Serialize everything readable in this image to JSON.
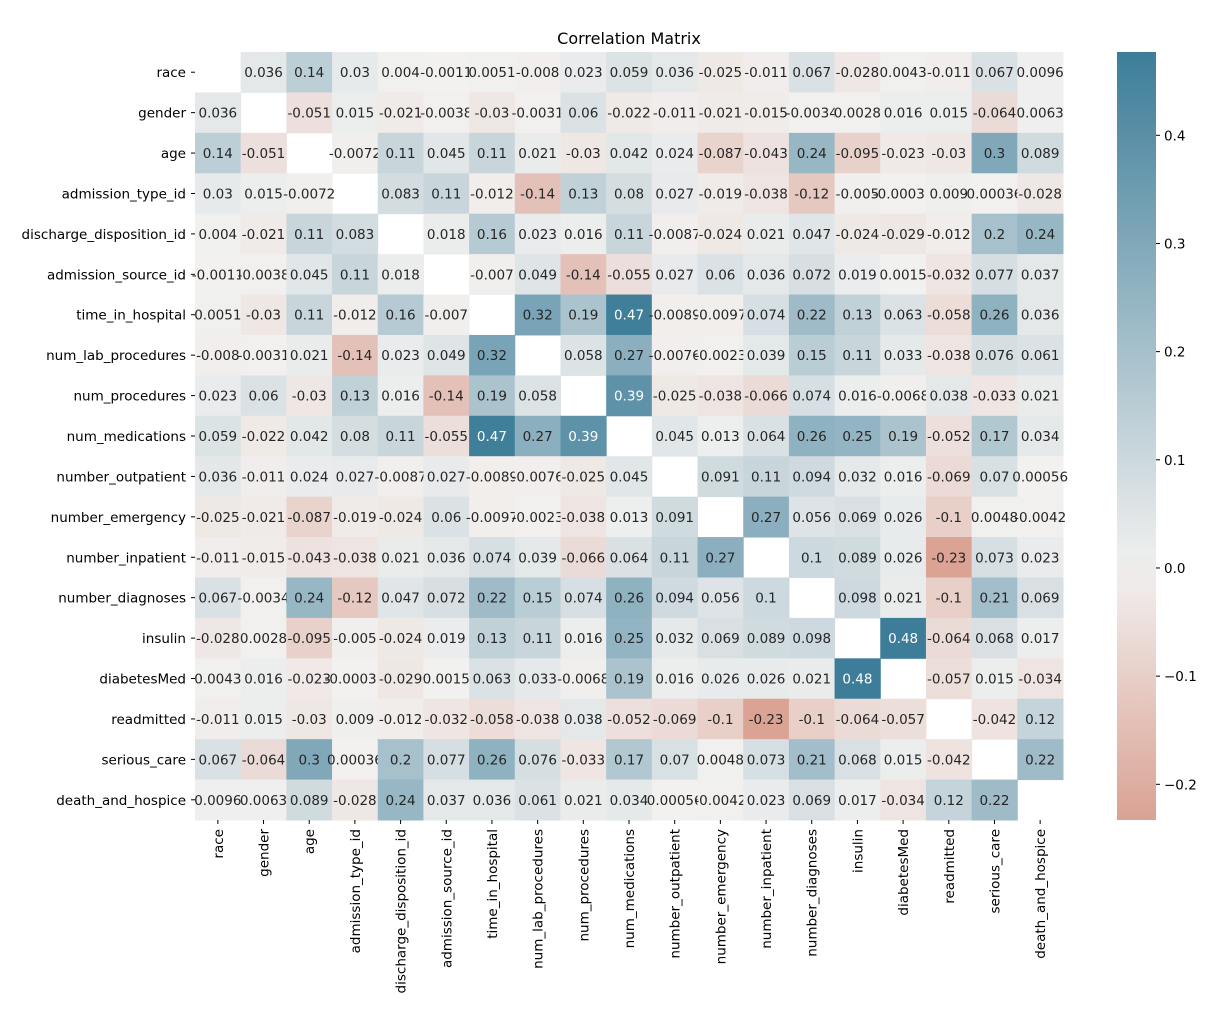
{
  "chart_data": {
    "type": "heatmap",
    "title": "Correlation Matrix",
    "labels": [
      "race",
      "gender",
      "age",
      "admission_type_id",
      "discharge_disposition_id",
      "admission_source_id",
      "time_in_hospital",
      "num_lab_procedures",
      "num_procedures",
      "num_medications",
      "number_outpatient",
      "number_emergency",
      "number_inpatient",
      "number_diagnoses",
      "insulin",
      "diabetesMed",
      "readmitted",
      "serious_care",
      "death_and_hospice"
    ],
    "matrix": [
      [
        null,
        0.036,
        0.14,
        0.03,
        0.004,
        -0.0011,
        0.0051,
        -0.008,
        0.023,
        0.059,
        0.036,
        -0.025,
        -0.011,
        0.067,
        -0.028,
        0.0043,
        -0.011,
        0.067,
        0.0096
      ],
      [
        0.036,
        null,
        -0.051,
        0.015,
        -0.021,
        -0.0038,
        -0.03,
        -0.0031,
        0.06,
        -0.022,
        -0.011,
        -0.021,
        -0.015,
        -0.0034,
        0.0028,
        0.016,
        0.015,
        -0.064,
        0.0063
      ],
      [
        0.14,
        -0.051,
        null,
        -0.0072,
        0.11,
        0.045,
        0.11,
        0.021,
        -0.03,
        0.042,
        0.024,
        -0.087,
        -0.043,
        0.24,
        -0.095,
        -0.023,
        -0.03,
        0.3,
        0.089
      ],
      [
        0.03,
        0.015,
        -0.0072,
        null,
        0.083,
        0.11,
        -0.012,
        -0.14,
        0.13,
        0.08,
        0.027,
        -0.019,
        -0.038,
        -0.12,
        -0.005,
        -0.00031,
        0.009,
        0.00036,
        -0.028
      ],
      [
        0.004,
        -0.021,
        0.11,
        0.083,
        null,
        0.018,
        0.16,
        0.023,
        0.016,
        0.11,
        -0.0087,
        -0.024,
        0.021,
        0.047,
        -0.024,
        -0.029,
        -0.012,
        0.2,
        0.24
      ],
      [
        -0.0011,
        -0.0038,
        0.045,
        0.11,
        0.018,
        null,
        -0.007,
        0.049,
        -0.14,
        -0.055,
        0.027,
        0.06,
        0.036,
        0.072,
        0.019,
        0.0015,
        -0.032,
        0.077,
        0.037
      ],
      [
        0.0051,
        -0.03,
        0.11,
        -0.012,
        0.16,
        -0.007,
        null,
        0.32,
        0.19,
        0.47,
        -0.0089,
        -0.0097,
        0.074,
        0.22,
        0.13,
        0.063,
        -0.058,
        0.26,
        0.036
      ],
      [
        -0.008,
        -0.0031,
        0.021,
        -0.14,
        0.023,
        0.049,
        0.32,
        null,
        0.058,
        0.27,
        -0.0076,
        -0.0023,
        0.039,
        0.15,
        0.11,
        0.033,
        -0.038,
        0.076,
        0.061
      ],
      [
        0.023,
        0.06,
        -0.03,
        0.13,
        0.016,
        -0.14,
        0.19,
        0.058,
        null,
        0.39,
        -0.025,
        -0.038,
        -0.066,
        0.074,
        0.016,
        -0.0068,
        0.038,
        -0.033,
        0.021
      ],
      [
        0.059,
        -0.022,
        0.042,
        0.08,
        0.11,
        -0.055,
        0.47,
        0.27,
        0.39,
        null,
        0.045,
        0.013,
        0.064,
        0.26,
        0.25,
        0.19,
        -0.052,
        0.17,
        0.034
      ],
      [
        0.036,
        -0.011,
        0.024,
        0.027,
        -0.0087,
        0.027,
        -0.0089,
        -0.0076,
        -0.025,
        0.045,
        null,
        0.091,
        0.11,
        0.094,
        0.032,
        0.016,
        -0.069,
        0.07,
        0.00056
      ],
      [
        -0.025,
        -0.021,
        -0.087,
        -0.019,
        -0.024,
        0.06,
        -0.0097,
        -0.0023,
        -0.038,
        0.013,
        0.091,
        null,
        0.27,
        0.056,
        0.069,
        0.026,
        -0.1,
        0.0048,
        -0.0042
      ],
      [
        -0.011,
        -0.015,
        -0.043,
        -0.038,
        0.021,
        0.036,
        0.074,
        0.039,
        -0.066,
        0.064,
        0.11,
        0.27,
        null,
        0.1,
        0.089,
        0.026,
        -0.23,
        0.073,
        0.023
      ],
      [
        0.067,
        -0.0034,
        0.24,
        -0.12,
        0.047,
        0.072,
        0.22,
        0.15,
        0.074,
        0.26,
        0.094,
        0.056,
        0.1,
        null,
        0.098,
        0.021,
        -0.1,
        0.21,
        0.069
      ],
      [
        -0.028,
        0.0028,
        -0.095,
        -0.005,
        -0.024,
        0.019,
        0.13,
        0.11,
        0.016,
        0.25,
        0.032,
        0.069,
        0.089,
        0.098,
        null,
        0.48,
        -0.064,
        0.068,
        0.017
      ],
      [
        0.0043,
        0.016,
        -0.023,
        -0.00031,
        -0.029,
        0.0015,
        0.063,
        0.033,
        -0.0068,
        0.19,
        0.016,
        0.026,
        0.026,
        0.021,
        0.48,
        null,
        -0.057,
        0.015,
        -0.034
      ],
      [
        -0.011,
        0.015,
        -0.03,
        0.009,
        -0.012,
        -0.032,
        -0.058,
        -0.038,
        0.038,
        -0.052,
        -0.069,
        -0.1,
        -0.23,
        -0.1,
        -0.064,
        -0.057,
        null,
        -0.042,
        0.12
      ],
      [
        0.067,
        -0.064,
        0.3,
        0.00036,
        0.2,
        0.077,
        0.26,
        0.076,
        -0.033,
        0.17,
        0.07,
        0.0048,
        0.073,
        0.21,
        0.068,
        0.015,
        -0.042,
        null,
        0.22
      ],
      [
        0.0096,
        0.0063,
        0.089,
        -0.028,
        0.24,
        0.037,
        0.036,
        0.061,
        0.021,
        0.034,
        0.00056,
        -0.0042,
        0.023,
        0.069,
        0.017,
        -0.034,
        0.12,
        0.22,
        null
      ]
    ],
    "diagonal": "blank",
    "annotated": true,
    "colorbar": {
      "range": [
        -0.233,
        0.477
      ],
      "ticks": [
        -0.2,
        -0.1,
        0.0,
        0.1,
        0.2,
        0.3,
        0.4
      ],
      "tick_labels": [
        "−0.2",
        "−0.1",
        "0.0",
        "0.1",
        "0.2",
        "0.3",
        "0.4"
      ],
      "center": 0
    },
    "colors": {
      "negative": "#c04f32",
      "center": "#f2f1f0",
      "positive": "#3d7d99"
    }
  }
}
